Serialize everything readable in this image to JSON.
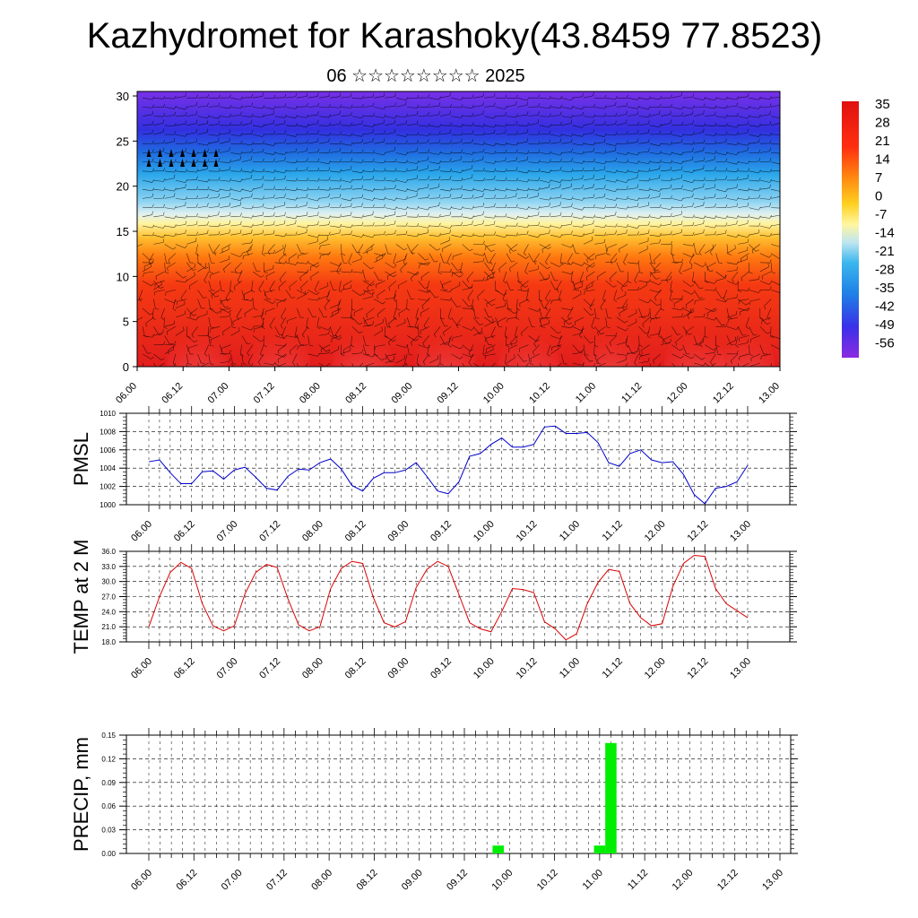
{
  "header": {
    "title": "Kazhydromet for Karashoky(43.8459 77.8523)",
    "subtitle": "06 ☆☆☆☆☆☆☆☆ 2025"
  },
  "time_labels": [
    "06.00",
    "06.12",
    "07.00",
    "07.12",
    "08.00",
    "08.12",
    "09.00",
    "09.12",
    "10.00",
    "10.12",
    "11.00",
    "11.12",
    "12.00",
    "12.12",
    "13.00"
  ],
  "colors": {
    "pmsl_line": "#0000cc",
    "temp_line": "#dd0000",
    "precip_bar": "#00ee00"
  },
  "chart_data": [
    {
      "type": "heatmap",
      "description": "vertical cross-section of temperature with wind barbs",
      "x": [
        "06.00",
        "06.12",
        "07.00",
        "07.12",
        "08.00",
        "08.12",
        "09.00",
        "09.12",
        "10.00",
        "10.12",
        "11.00",
        "11.12",
        "12.00",
        "12.12",
        "13.00"
      ],
      "yticks": [
        0,
        5,
        10,
        15,
        20,
        25,
        30
      ],
      "ylim": [
        0,
        30.5
      ],
      "colorbar_labels": [
        35,
        28,
        21,
        14,
        7,
        0,
        -7,
        -14,
        -21,
        -28,
        -35,
        -42,
        -49,
        -56
      ],
      "colorbar_range": [
        -60,
        38
      ]
    },
    {
      "type": "line",
      "ylabel": "PMSL",
      "ylim": [
        1000,
        1010
      ],
      "yticks": [
        1000,
        1002,
        1004,
        1006,
        1008,
        1010
      ],
      "series": [
        {
          "values": [
            1004.7,
            1004.9,
            1003.5,
            1002.3,
            1002.3,
            1003.6,
            1003.7,
            1002.8,
            1003.8,
            1004.1,
            1003.0,
            1001.8,
            1001.6,
            1003.1,
            1003.9,
            1003.8,
            1004.6,
            1005.0,
            1003.9,
            1002.1,
            1001.5,
            1002.9,
            1003.5,
            1003.5,
            1003.8,
            1004.6,
            1003.1,
            1001.5,
            1001.2,
            1002.5,
            1005.3,
            1005.6,
            1006.6,
            1007.3,
            1006.3,
            1006.3,
            1006.6,
            1008.5,
            1008.6,
            1007.8,
            1007.8,
            1007.9,
            1006.8,
            1004.6,
            1004.2,
            1005.6,
            1006.0,
            1004.9,
            1004.6,
            1004.7,
            1003.3,
            1001.1,
            1000.1,
            1001.8,
            1002.0,
            1002.5,
            1004.3
          ]
        }
      ]
    },
    {
      "type": "line",
      "ylabel": "TEMP at 2 M",
      "ylim": [
        18,
        36
      ],
      "yticks": [
        "18.0",
        "21.0",
        "24.0",
        "27.0",
        "30.0",
        "33.0",
        "36.0"
      ],
      "series": [
        {
          "values": [
            21.0,
            27.0,
            31.8,
            33.8,
            32.6,
            25.6,
            21.2,
            20.2,
            21.2,
            27.6,
            31.8,
            33.4,
            32.8,
            26.6,
            21.4,
            20.2,
            21.0,
            28.6,
            32.6,
            34.0,
            33.6,
            26.8,
            21.8,
            21.0,
            22.0,
            28.8,
            32.4,
            34.0,
            33.0,
            27.4,
            21.8,
            20.6,
            20.0,
            24.0,
            28.6,
            28.4,
            27.8,
            22.0,
            20.6,
            18.4,
            19.6,
            25.6,
            29.8,
            32.4,
            32.0,
            25.6,
            22.8,
            21.2,
            21.6,
            29.0,
            33.6,
            35.2,
            35.0,
            28.6,
            25.6,
            24.2,
            22.8
          ]
        }
      ]
    },
    {
      "type": "bar",
      "ylabel": "PRECIP, mm",
      "ylim": [
        0,
        0.15
      ],
      "yticks": [
        "0.00",
        "0.03",
        "0.06",
        "0.09",
        "0.12",
        "0.15"
      ],
      "values": [
        0,
        0,
        0,
        0,
        0,
        0,
        0,
        0,
        0,
        0,
        0,
        0,
        0,
        0,
        0,
        0,
        0,
        0,
        0,
        0,
        0,
        0,
        0,
        0,
        0,
        0,
        0,
        0,
        0,
        0,
        0,
        0.01,
        0,
        0,
        0,
        0,
        0,
        0,
        0,
        0,
        0.01,
        0.14,
        0,
        0,
        0,
        0,
        0,
        0,
        0,
        0,
        0,
        0,
        0,
        0,
        0,
        0,
        0
      ]
    }
  ]
}
